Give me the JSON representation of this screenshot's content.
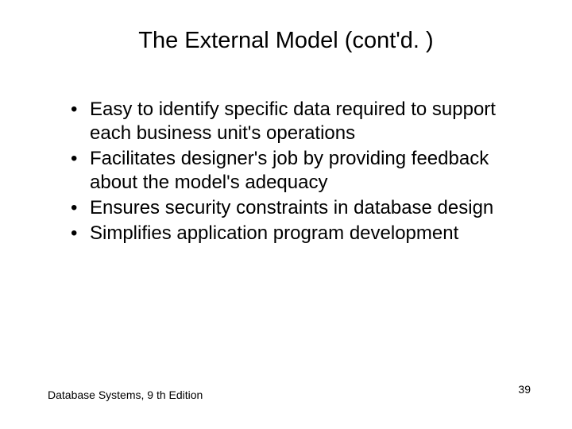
{
  "slide": {
    "title": "The External Model (cont'd. )",
    "bullets": [
      "Easy to identify specific data required to support each business unit's operations",
      "Facilitates designer's job by providing feedback about the model's adequacy",
      "Ensures security constraints in database design",
      "Simplifies application program development"
    ],
    "footer_left": "Database Systems, 9 th Edition",
    "page_number": "39",
    "colors": {
      "background": "#ffffff",
      "text": "#000000"
    },
    "typography": {
      "title_fontsize": 29,
      "body_fontsize": 24,
      "footer_fontsize": 14,
      "font_family": "Arial"
    }
  }
}
